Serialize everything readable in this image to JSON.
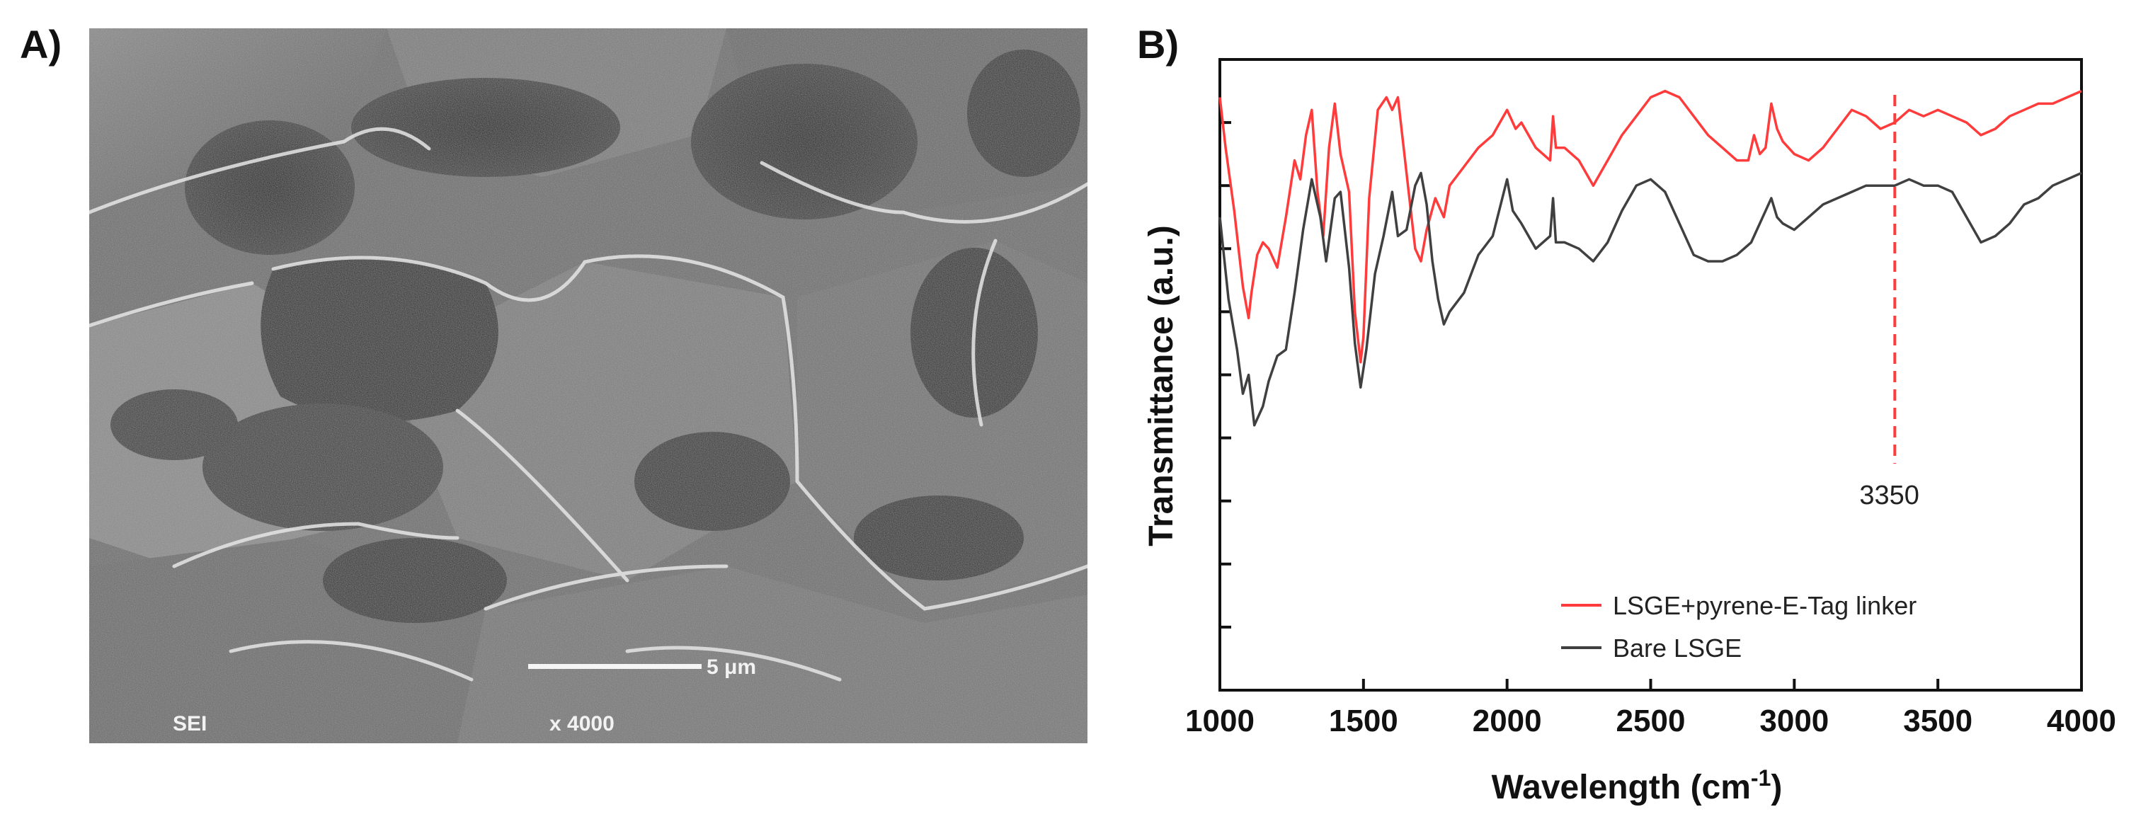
{
  "panels": {
    "a_label": "A)",
    "b_label": "B)"
  },
  "sem_image": {
    "mode_label": "SEI",
    "magnification": "x 4000",
    "scale_bar_label": "5 μm",
    "colors": {
      "base": "#6e6e6e",
      "dark": "#202020",
      "light": "#e8e8e8"
    }
  },
  "chart_data": {
    "type": "line",
    "xlabel": "Wavelength (cm",
    "xlabel_sup": "-1",
    "xlabel_close": ")",
    "ylabel": "Transmittance (a.u.)",
    "xlim": [
      1000,
      4000
    ],
    "ylim": [
      0,
      10
    ],
    "x_ticks": [
      1000,
      1500,
      2000,
      2500,
      3000,
      3500,
      4000
    ],
    "y_ticks_unlabeled": true,
    "legend_position": "bottom-right",
    "annotation": {
      "x": 3350,
      "label": "3350",
      "color": "#ff3b3b",
      "style": "dashed"
    },
    "series": [
      {
        "name": "LSGE+pyrene-E-Tag linker",
        "color": "#ff3b3b",
        "x": [
          1000,
          1020,
          1050,
          1080,
          1100,
          1110,
          1130,
          1150,
          1170,
          1200,
          1230,
          1260,
          1280,
          1300,
          1320,
          1340,
          1360,
          1380,
          1400,
          1420,
          1450,
          1470,
          1490,
          1500,
          1520,
          1550,
          1580,
          1600,
          1620,
          1640,
          1660,
          1680,
          1700,
          1720,
          1750,
          1780,
          1800,
          1850,
          1900,
          1950,
          2000,
          2030,
          2050,
          2100,
          2150,
          2160,
          2170,
          2200,
          2250,
          2300,
          2350,
          2400,
          2450,
          2500,
          2550,
          2600,
          2650,
          2700,
          2750,
          2800,
          2840,
          2860,
          2880,
          2900,
          2920,
          2940,
          2960,
          3000,
          3050,
          3100,
          3150,
          3200,
          3250,
          3300,
          3350,
          3400,
          3450,
          3500,
          3550,
          3600,
          3650,
          3700,
          3750,
          3800,
          3850,
          3900,
          3950,
          4000
        ],
        "y": [
          9.4,
          8.6,
          7.6,
          6.4,
          5.9,
          6.3,
          6.9,
          7.1,
          7.0,
          6.7,
          7.5,
          8.4,
          8.1,
          8.8,
          9.2,
          7.9,
          7.2,
          8.6,
          9.3,
          8.5,
          7.9,
          6.0,
          5.2,
          5.6,
          7.8,
          9.2,
          9.4,
          9.2,
          9.4,
          8.6,
          7.8,
          7.0,
          6.8,
          7.3,
          7.8,
          7.5,
          8.0,
          8.3,
          8.6,
          8.8,
          9.2,
          8.9,
          9.0,
          8.6,
          8.4,
          9.1,
          8.6,
          8.6,
          8.4,
          8.0,
          8.4,
          8.8,
          9.1,
          9.4,
          9.5,
          9.4,
          9.1,
          8.8,
          8.6,
          8.4,
          8.4,
          8.8,
          8.5,
          8.6,
          9.3,
          8.9,
          8.7,
          8.5,
          8.4,
          8.6,
          8.9,
          9.2,
          9.1,
          8.9,
          9.0,
          9.2,
          9.1,
          9.2,
          9.1,
          9.0,
          8.8,
          8.9,
          9.1,
          9.2,
          9.3,
          9.3,
          9.4,
          9.5
        ]
      },
      {
        "name": "Bare LSGE",
        "color": "#404040",
        "x": [
          1000,
          1030,
          1060,
          1080,
          1100,
          1120,
          1150,
          1170,
          1200,
          1230,
          1260,
          1290,
          1320,
          1350,
          1370,
          1400,
          1420,
          1450,
          1470,
          1490,
          1510,
          1540,
          1570,
          1600,
          1620,
          1650,
          1680,
          1700,
          1720,
          1740,
          1760,
          1780,
          1800,
          1850,
          1900,
          1950,
          2000,
          2020,
          2050,
          2100,
          2150,
          2160,
          2170,
          2200,
          2250,
          2300,
          2350,
          2400,
          2450,
          2500,
          2550,
          2600,
          2650,
          2700,
          2750,
          2800,
          2850,
          2900,
          2920,
          2940,
          2960,
          3000,
          3050,
          3100,
          3150,
          3200,
          3250,
          3300,
          3350,
          3400,
          3450,
          3500,
          3550,
          3600,
          3650,
          3700,
          3750,
          3800,
          3850,
          3900,
          3950,
          4000
        ],
        "y": [
          7.5,
          6.2,
          5.4,
          4.7,
          5.0,
          4.2,
          4.5,
          4.9,
          5.3,
          5.4,
          6.3,
          7.3,
          8.1,
          7.5,
          6.8,
          7.8,
          7.9,
          6.7,
          5.5,
          4.8,
          5.4,
          6.6,
          7.2,
          7.9,
          7.2,
          7.3,
          8.0,
          8.2,
          7.7,
          6.8,
          6.2,
          5.8,
          6.0,
          6.3,
          6.9,
          7.2,
          8.1,
          7.6,
          7.4,
          7.0,
          7.2,
          7.8,
          7.1,
          7.1,
          7.0,
          6.8,
          7.1,
          7.6,
          8.0,
          8.1,
          7.9,
          7.4,
          6.9,
          6.8,
          6.8,
          6.9,
          7.1,
          7.6,
          7.8,
          7.5,
          7.4,
          7.3,
          7.5,
          7.7,
          7.8,
          7.9,
          8.0,
          8.0,
          8.0,
          8.1,
          8.0,
          8.0,
          7.9,
          7.5,
          7.1,
          7.2,
          7.4,
          7.7,
          7.8,
          8.0,
          8.1,
          8.2
        ]
      }
    ]
  }
}
